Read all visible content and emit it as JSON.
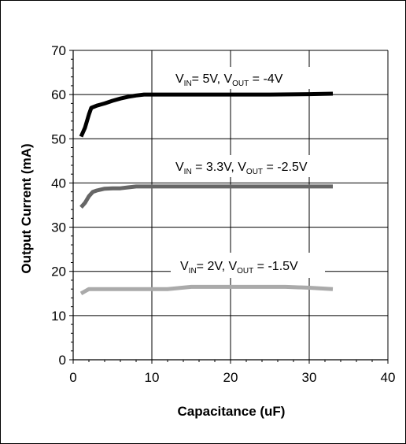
{
  "chart_data": {
    "type": "line",
    "xlabel": "Capacitance (uF)",
    "ylabel": "Output Current (mA)",
    "xlim": [
      0,
      40
    ],
    "ylim": [
      0,
      70
    ],
    "x_ticks": [
      0,
      10,
      20,
      30,
      40
    ],
    "y_ticks": [
      0,
      10,
      20,
      30,
      40,
      50,
      60,
      70
    ],
    "grid": "horizontal",
    "legend": "none",
    "series": [
      {
        "label_parts": [
          "V",
          "IN",
          "= 5V, V",
          "OUT",
          " = -4V"
        ],
        "color": "#000000",
        "x": [
          1,
          1.5,
          2,
          2.3,
          3,
          4,
          5,
          6,
          7,
          8,
          9,
          10,
          12,
          15,
          20,
          25,
          30,
          33
        ],
        "y": [
          50.5,
          52.5,
          55.5,
          57,
          57.5,
          58,
          58.6,
          59.1,
          59.5,
          59.8,
          60,
          60,
          60,
          60,
          60,
          60,
          60.1,
          60.2
        ]
      },
      {
        "label_parts": [
          "V",
          "IN",
          " = 3.3V, V",
          "OUT",
          " = -2.5V"
        ],
        "color": "#666666",
        "x": [
          1,
          1.5,
          2,
          2.5,
          3,
          4,
          5,
          6,
          7,
          8,
          10,
          15,
          20,
          25,
          30,
          33
        ],
        "y": [
          34.5,
          35.5,
          37,
          38,
          38.3,
          38.7,
          38.8,
          38.8,
          39,
          39.2,
          39.2,
          39.2,
          39.2,
          39.2,
          39.2,
          39.2
        ]
      },
      {
        "label_parts": [
          "V",
          "IN",
          "= 2V, V",
          "OUT",
          " = -1.5V"
        ],
        "color": "#aaaaaa",
        "x": [
          1,
          1.5,
          2,
          2.5,
          5,
          10,
          12,
          15,
          20,
          25,
          27,
          30,
          33
        ],
        "y": [
          15,
          15.5,
          16,
          16,
          16,
          16,
          16,
          16.5,
          16.5,
          16.5,
          16.5,
          16.3,
          16
        ]
      }
    ]
  }
}
